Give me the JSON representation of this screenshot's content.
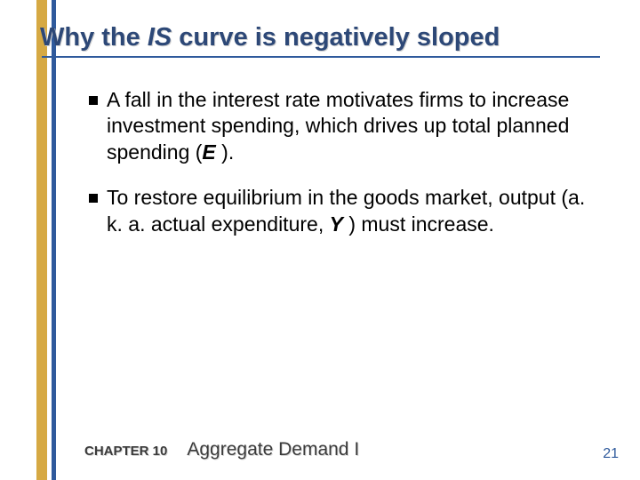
{
  "colors": {
    "stripe_gold": "#d6a943",
    "stripe_blue": "#2f5a9c",
    "title_color": "#2d4877",
    "text_color": "#000000",
    "footer_color": "#3a3a3a",
    "pagenum_color": "#2f5a9c",
    "background": "#ffffff"
  },
  "title": {
    "pre": "Why the ",
    "italic": "IS",
    "post": " curve is negatively sloped",
    "fontsize": 29
  },
  "bullets": [
    {
      "parts": [
        {
          "t": "A fall in the interest rate motivates firms to increase investment spending, which drives up total planned spending (",
          "i": false
        },
        {
          "t": "E",
          "i": true
        },
        {
          "t": " ).",
          "i": false
        }
      ]
    },
    {
      "parts": [
        {
          "t": "To restore equilibrium in the goods market, output (a. k. a. actual expenditure, ",
          "i": false
        },
        {
          "t": "Y",
          "i": true
        },
        {
          "t": " ) must increase.",
          "i": false
        }
      ]
    }
  ],
  "bullet_fontsize": 23,
  "footer": {
    "chapter_label": "CHAPTER 10",
    "chapter_title": "Aggregate Demand I",
    "page_number": "21"
  }
}
